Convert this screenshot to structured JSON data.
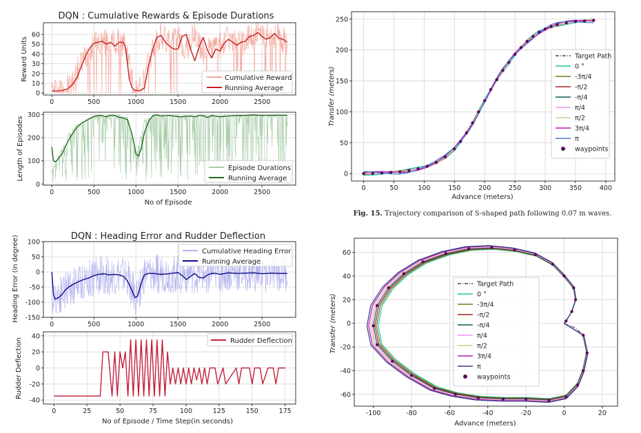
{
  "caption": {
    "label": "Fig. 15.",
    "text": "Trajectory comparison of S-shaped path following 0.07 m waves."
  },
  "chart_data": [
    {
      "id": "c1",
      "type": "line",
      "title": "DQN : Cumulative Rewards & Episode Durations",
      "xlabel": "",
      "ylabel": "Reward Units",
      "xlim": [
        -100,
        2900
      ],
      "ylim": [
        -2,
        72
      ],
      "xticks": [
        0,
        500,
        1000,
        1500,
        2000,
        2500
      ],
      "yticks": [
        0,
        10,
        20,
        30,
        40,
        50,
        60
      ],
      "series": [
        {
          "name": "Cumulative Reward",
          "color": "#f4a99e",
          "style": "noisy",
          "x": [
            0,
            60,
            150,
            250,
            320,
            400,
            500,
            600,
            700,
            780,
            820,
            870,
            920,
            960,
            1000,
            1050,
            1100,
            1200,
            1300,
            1400,
            1500,
            1600,
            1700,
            1800,
            1900,
            2000,
            2100,
            2200,
            2300,
            2400,
            2500,
            2600,
            2700,
            2800
          ],
          "y": [
            2,
            2,
            3,
            10,
            25,
            38,
            48,
            52,
            50,
            51,
            48,
            50,
            30,
            10,
            4,
            3,
            12,
            45,
            58,
            50,
            55,
            44,
            60,
            40,
            45,
            48,
            55,
            50,
            52,
            58,
            56,
            60,
            55,
            52
          ]
        },
        {
          "name": "Running Average",
          "color": "#c41e1e",
          "style": "line",
          "x": [
            0,
            60,
            120,
            180,
            240,
            300,
            350,
            400,
            450,
            500,
            550,
            600,
            650,
            700,
            750,
            800,
            850,
            880,
            900,
            920,
            950,
            980,
            1000,
            1050,
            1100,
            1150,
            1200,
            1250,
            1300,
            1350,
            1400,
            1450,
            1500,
            1550,
            1600,
            1650,
            1700,
            1750,
            1800,
            1850,
            1900,
            1950,
            2000,
            2050,
            2100,
            2150,
            2200,
            2250,
            2300,
            2350,
            2400,
            2450,
            2500,
            2550,
            2600,
            2650,
            2700,
            2750,
            2800
          ],
          "y": [
            2,
            2,
            2.5,
            4,
            8,
            16,
            27,
            38,
            46,
            51,
            52,
            53,
            50,
            52,
            48,
            52,
            52,
            45,
            30,
            15,
            6,
            3,
            2.5,
            2.5,
            5,
            28,
            45,
            57,
            59,
            52,
            48,
            45,
            45,
            58,
            60,
            45,
            33,
            47,
            57,
            44,
            36,
            45,
            43,
            51,
            55,
            52,
            49,
            52,
            53,
            58,
            59,
            62,
            58,
            55,
            57,
            61,
            56,
            55,
            52
          ]
        }
      ]
    },
    {
      "id": "c2",
      "type": "line",
      "title": "",
      "xlabel": "No of Episode",
      "ylabel": "Length of Episodes",
      "xlim": [
        -100,
        2900
      ],
      "ylim": [
        -5,
        310
      ],
      "xticks": [
        0,
        500,
        1000,
        1500,
        2000,
        2500
      ],
      "yticks": [
        0,
        100,
        200,
        300
      ],
      "series": [
        {
          "name": "Episode Durations",
          "color": "#a8cca8",
          "style": "noisy-down",
          "x": [
            0,
            100,
            200,
            300,
            400,
            500,
            600,
            700,
            800,
            900,
            1000,
            1100,
            1200,
            1300,
            1400,
            1500,
            1600,
            1700,
            1800,
            1900,
            2000,
            2100,
            2200,
            2300,
            2400,
            2500,
            2600,
            2700,
            2800
          ],
          "y": [
            60,
            140,
            220,
            260,
            280,
            295,
            298,
            299,
            298,
            296,
            120,
            280,
            298,
            299,
            300,
            299,
            298,
            300,
            300,
            298,
            300,
            300,
            300,
            300,
            300,
            300,
            300,
            300,
            300
          ]
        },
        {
          "name": "Running Average",
          "color": "#1e6b1e",
          "style": "line",
          "x": [
            0,
            20,
            40,
            80,
            120,
            160,
            200,
            250,
            300,
            350,
            400,
            450,
            500,
            550,
            600,
            650,
            700,
            750,
            800,
            850,
            900,
            950,
            980,
            1000,
            1030,
            1060,
            1100,
            1150,
            1200,
            1250,
            1300,
            1400,
            1500,
            1550,
            1600,
            1650,
            1700,
            1750,
            1800,
            1850,
            1900,
            2000,
            2100,
            2200,
            2300,
            2400,
            2500,
            2600,
            2700,
            2800
          ],
          "y": [
            160,
            100,
            95,
            110,
            130,
            160,
            190,
            220,
            245,
            262,
            272,
            282,
            292,
            296,
            295,
            290,
            297,
            296,
            288,
            285,
            278,
            220,
            170,
            130,
            120,
            150,
            220,
            270,
            295,
            298,
            294,
            296,
            291,
            290,
            293,
            294,
            290,
            295,
            296,
            287,
            296,
            290,
            294,
            296,
            296,
            298,
            296,
            297,
            297,
            297
          ]
        }
      ]
    },
    {
      "id": "c3",
      "type": "line",
      "title": "DQN : Heading Error and Rudder Deflection",
      "xlabel": "",
      "ylabel": "Heading Error (in degree)",
      "xlim": [
        -100,
        2900
      ],
      "ylim": [
        -150,
        100
      ],
      "xticks": [
        0,
        500,
        1000,
        1500,
        2000,
        2500
      ],
      "yticks": [
        -150,
        -100,
        -50,
        0,
        50,
        100
      ],
      "series": [
        {
          "name": "Cumulative Heading Error",
          "color": "#b4b4ee",
          "style": "noisy-sym",
          "x": [
            0,
            100,
            200,
            300,
            400,
            500,
            600,
            700,
            800,
            900,
            1000,
            1100,
            1200,
            1300,
            1400,
            1500,
            1600,
            1700,
            1800,
            1900,
            2000,
            2100,
            2200,
            2300,
            2400,
            2500,
            2600,
            2700,
            2800
          ],
          "y": [
            -80,
            -70,
            -50,
            -40,
            -30,
            -15,
            -10,
            -15,
            -12,
            -20,
            -90,
            -10,
            -10,
            -5,
            -8,
            -10,
            -5,
            -10,
            -8,
            -5,
            -5,
            -5,
            -5,
            -5,
            -5,
            -5,
            -5,
            -5,
            -5
          ]
        },
        {
          "name": "Running Average",
          "color": "#0a0a8a",
          "style": "line",
          "x": [
            0,
            20,
            40,
            80,
            120,
            160,
            200,
            260,
            320,
            380,
            440,
            500,
            560,
            620,
            680,
            740,
            800,
            850,
            900,
            950,
            990,
            1020,
            1060,
            1100,
            1150,
            1200,
            1300,
            1400,
            1500,
            1550,
            1600,
            1650,
            1700,
            1750,
            1800,
            1850,
            1900,
            1950,
            2000,
            2100,
            2200,
            2300,
            2400,
            2500,
            2600,
            2700,
            2800
          ],
          "y": [
            0,
            -75,
            -90,
            -85,
            -75,
            -60,
            -50,
            -40,
            -32,
            -25,
            -20,
            -12,
            -8,
            -6,
            -10,
            -8,
            -10,
            -14,
            -30,
            -60,
            -85,
            -80,
            -40,
            -10,
            -5,
            -5,
            -8,
            -6,
            -2,
            -12,
            -25,
            -15,
            -5,
            -18,
            -20,
            -10,
            -5,
            -5,
            -8,
            -3,
            -5,
            -4,
            -3,
            -6,
            -4,
            -5,
            -5
          ]
        }
      ]
    },
    {
      "id": "c4",
      "type": "line",
      "title": "",
      "xlabel": "No of Episode / Time Step(in seconds)",
      "ylabel": "Rudder Deflection",
      "xlim": [
        -8,
        183
      ],
      "ylim": [
        -45,
        45
      ],
      "xticks": [
        0,
        25,
        50,
        75,
        100,
        125,
        150,
        175
      ],
      "yticks": [
        -40,
        -20,
        0,
        20,
        40
      ],
      "series": [
        {
          "name": "Rudder Deflection",
          "color": "#c41e3a",
          "style": "line",
          "x": [
            0,
            35,
            37,
            41,
            44,
            46,
            48,
            50,
            52,
            54,
            56,
            58,
            60,
            62,
            64,
            66,
            68,
            70,
            72,
            74,
            76,
            78,
            80,
            82,
            84,
            86,
            88,
            90,
            92,
            94,
            96,
            98,
            100,
            102,
            104,
            106,
            108,
            110,
            112,
            114,
            116,
            118,
            122,
            124,
            128,
            130,
            138,
            140,
            142,
            148,
            150,
            152,
            156,
            158,
            162,
            166,
            168,
            170,
            175
          ],
          "y": [
            -35,
            -35,
            20,
            20,
            -35,
            20,
            -35,
            20,
            0,
            20,
            -35,
            35,
            -35,
            35,
            -35,
            35,
            -35,
            35,
            -35,
            35,
            -35,
            35,
            -35,
            35,
            -35,
            20,
            -20,
            0,
            -20,
            0,
            -20,
            0,
            -20,
            0,
            -20,
            0,
            -15,
            0,
            -20,
            0,
            -20,
            0,
            0,
            -20,
            0,
            -20,
            0,
            -20,
            0,
            0,
            -20,
            0,
            0,
            -20,
            0,
            0,
            -20,
            0,
            0
          ]
        }
      ]
    },
    {
      "id": "c5",
      "type": "line",
      "title": "",
      "xlabel": "Advance  (meters)",
      "ylabel": "Transfer  (meters)",
      "xlim": [
        -20,
        415
      ],
      "ylim": [
        -12,
        262
      ],
      "xticks": [
        0,
        50,
        100,
        150,
        200,
        250,
        300,
        350,
        400
      ],
      "yticks": [
        0,
        50,
        100,
        150,
        200,
        250
      ],
      "legend": [
        "Target Path",
        "0 °",
        "-3π/4",
        "-π/2",
        "-π/4",
        "π/4",
        "π/2",
        "3π/4",
        "π",
        "waypoints"
      ],
      "series": [
        {
          "name": "Target Path",
          "color": "#444444",
          "style": "dashdot"
        },
        {
          "name": "0 °",
          "color": "#1fc8a0"
        },
        {
          "name": "-3π/4",
          "color": "#6a7a1a"
        },
        {
          "name": "-π/2",
          "color": "#a0241e"
        },
        {
          "name": "-π/4",
          "color": "#0e5a5a"
        },
        {
          "name": "π/4",
          "color": "#ee90ee"
        },
        {
          "name": "π/2",
          "color": "#d8c890"
        },
        {
          "name": "3π/4",
          "color": "#b818b8"
        },
        {
          "name": "π",
          "color": "#4a78c8"
        },
        {
          "name": "waypoints",
          "color": "#5a0a5a",
          "style": "marker",
          "x": [
            0,
            15,
            30,
            45,
            60,
            75,
            90,
            105,
            120,
            135,
            150,
            160,
            170,
            180,
            190,
            200,
            210,
            220,
            230,
            240,
            250,
            260,
            270,
            280,
            290,
            300,
            310,
            320,
            335,
            350,
            365,
            380
          ],
          "y": [
            0,
            0.5,
            1,
            2,
            3,
            5,
            8,
            12,
            18,
            27,
            40,
            52,
            66,
            82,
            100,
            118,
            136,
            152,
            167,
            180,
            193,
            204,
            214,
            222,
            229,
            234,
            238,
            241,
            244,
            246,
            247,
            248
          ]
        }
      ]
    },
    {
      "id": "c6",
      "type": "line",
      "title": "",
      "xlabel": "Advance  (meters)",
      "ylabel": "Transfer  (meters)",
      "xlim": [
        -110,
        28
      ],
      "ylim": [
        -70,
        72
      ],
      "xticks": [
        -100,
        -80,
        -60,
        -40,
        -20,
        0,
        20
      ],
      "yticks": [
        -60,
        -40,
        -20,
        0,
        20,
        40,
        60
      ],
      "legend": [
        "Target Path",
        "0 °",
        "-3π/4",
        "-π/2",
        "-π/4",
        "π/4",
        "π/2",
        "3π/4",
        "π",
        "waypoints"
      ],
      "series": [
        {
          "name": "Target Path",
          "color": "#444444",
          "style": "dashdot"
        },
        {
          "name": "0 °",
          "color": "#1fc8a0"
        },
        {
          "name": "-3π/4",
          "color": "#6a7a1a"
        },
        {
          "name": "-π/2",
          "color": "#a0241e"
        },
        {
          "name": "-π/4",
          "color": "#0e5a5a"
        },
        {
          "name": "π/4",
          "color": "#ee90ee"
        },
        {
          "name": "π/2",
          "color": "#d8c890"
        },
        {
          "name": "3π/4",
          "color": "#b818b8"
        },
        {
          "name": "π",
          "color": "#2a3a8a"
        },
        {
          "name": "waypoints",
          "color": "#5a0a5a",
          "style": "marker",
          "x": [
            10,
            12,
            10,
            7,
            1,
            -8,
            -20,
            -32,
            -45,
            -57,
            -68,
            -80,
            -90,
            -98,
            -100,
            -98,
            -92,
            -84,
            -74,
            -62,
            -50,
            -38,
            -26,
            -15,
            -6,
            0,
            5,
            6,
            4,
            1
          ],
          "y": [
            -10,
            -25,
            -40,
            -52,
            -62,
            -65,
            -64,
            -64,
            -63,
            -60,
            -55,
            -44,
            -32,
            -18,
            -2,
            15,
            30,
            42,
            52,
            59,
            63,
            64,
            62,
            58,
            50,
            40,
            30,
            20,
            10,
            2
          ]
        }
      ]
    }
  ]
}
